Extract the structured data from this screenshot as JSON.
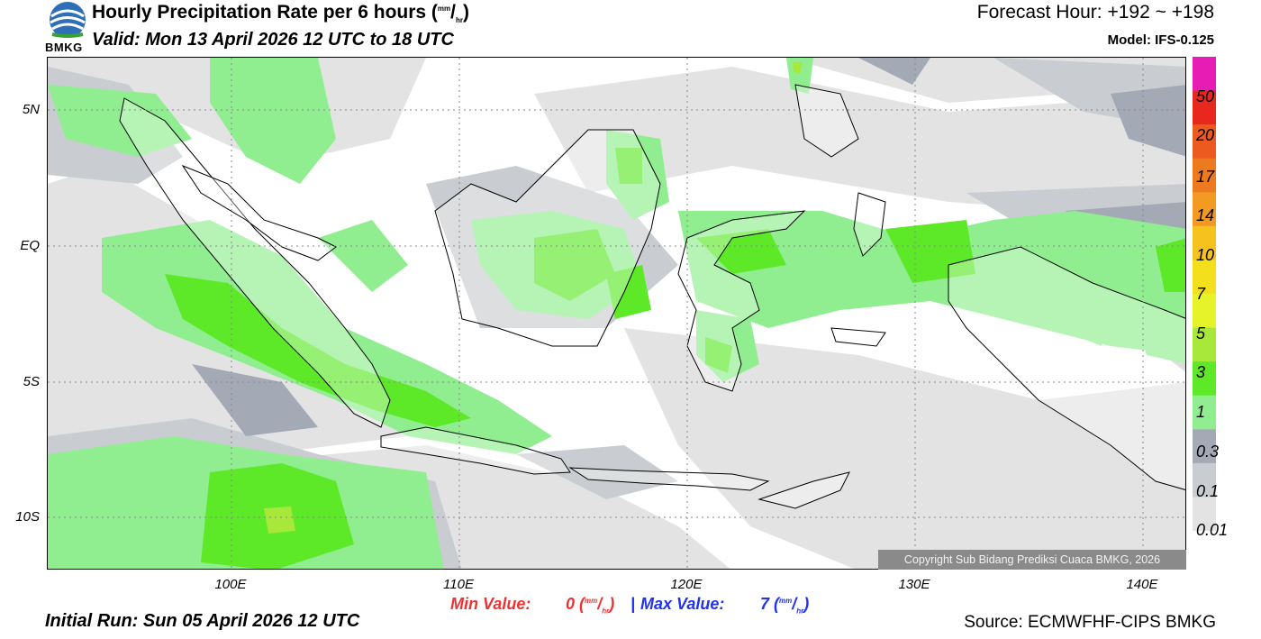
{
  "header": {
    "title": "Hourly Precipitation Rate per 6 hours",
    "title_unit_num": "mm",
    "title_unit_den": "hr",
    "valid": "Valid: Mon 13 April 2026 12 UTC to 18 UTC",
    "forecast_hour": "Forecast Hour: +192 ~ +198",
    "model": "Model: IFS-0.125"
  },
  "logo": {
    "text": "BMKG",
    "icon": "bmkg-logo"
  },
  "map": {
    "y_ticks": [
      "5N",
      "EQ",
      "5S",
      "10S"
    ],
    "x_ticks": [
      "100E",
      "110E",
      "120E",
      "130E",
      "140E"
    ],
    "copyright": "Copyright Sub Bidang Prediksi Cuaca BMKG, 2026"
  },
  "colorbar": {
    "labels": [
      "50",
      "20",
      "17",
      "14",
      "10",
      "7",
      "5",
      "3",
      "1",
      "0.3",
      "0.1",
      "0.01"
    ],
    "colors": [
      "#e61cb4",
      "#e8281f",
      "#ec5a1f",
      "#ee7a20",
      "#f29a22",
      "#f5c21e",
      "#f3df1c",
      "#e6f22a",
      "#a8e83a",
      "#5de828",
      "#90ee90",
      "#a3aab5",
      "#c9ccd0",
      "#e3e3e3"
    ]
  },
  "stats": {
    "min_label": "Min Value:",
    "min_value": "0",
    "max_label": "Max Value:",
    "max_value": "7",
    "separator": "|",
    "unit_num": "mm",
    "unit_den": "hr",
    "min_color": "#ee3333",
    "max_color": "#2233ee"
  },
  "footer": {
    "initial_run": "Initial Run: Sun 05 April 2026 12 UTC",
    "source": "Source: ECMWFHF-CIPS BMKG"
  }
}
